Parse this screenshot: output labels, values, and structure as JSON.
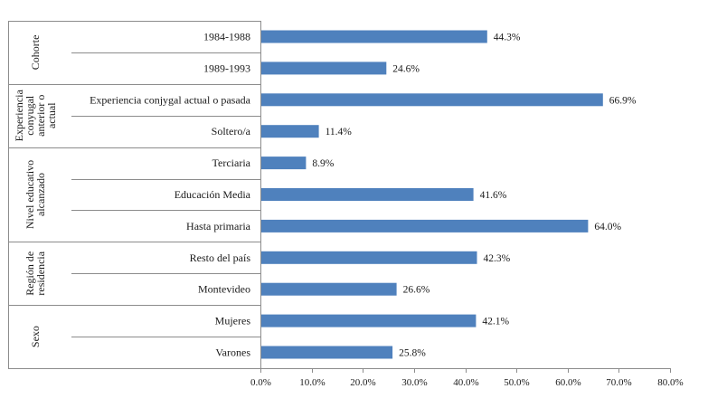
{
  "chart_data": {
    "type": "bar",
    "orientation": "horizontal",
    "xlim": [
      0,
      80
    ],
    "x_ticks": [
      "0.0%",
      "10.0%",
      "20.0%",
      "30.0%",
      "40.0%",
      "50.0%",
      "60.0%",
      "70.0%",
      "80.0%"
    ],
    "bar_color": "#4f81bd",
    "grid": false,
    "groups": [
      {
        "name": [
          "Cohorte"
        ],
        "categories": [
          "1984-1988",
          "1989-1993"
        ]
      },
      {
        "name": [
          "Experiencia",
          "conyugal",
          "anterior o",
          "actual"
        ],
        "categories": [
          "Experiencia conjygal actual o pasada",
          "Soltero/a"
        ]
      },
      {
        "name": [
          "Nivel educativo",
          "alcanzado"
        ],
        "categories": [
          "Terciaria",
          "Educación Media",
          "Hasta primaria"
        ]
      },
      {
        "name": [
          "Región de",
          "residencia"
        ],
        "categories": [
          "Resto del país",
          "Montevideo"
        ]
      },
      {
        "name": [
          "Sexo"
        ],
        "categories": [
          "Mujeres",
          "Varones"
        ]
      }
    ],
    "categories": [
      "1984-1988",
      "1989-1993",
      "Experiencia conjygal actual o pasada",
      "Soltero/a",
      "Terciaria",
      "Educación Media",
      "Hasta primaria",
      "Resto del país",
      "Montevideo",
      "Mujeres",
      "Varones"
    ],
    "values": [
      44.3,
      24.6,
      66.9,
      11.4,
      8.9,
      41.6,
      64.0,
      42.3,
      26.6,
      42.1,
      25.8
    ],
    "value_labels": [
      "44.3%",
      "24.6%",
      "66.9%",
      "11.4%",
      "8.9%",
      "41.6%",
      "64.0%",
      "42.3%",
      "26.6%",
      "42.1%",
      "25.8%"
    ]
  }
}
